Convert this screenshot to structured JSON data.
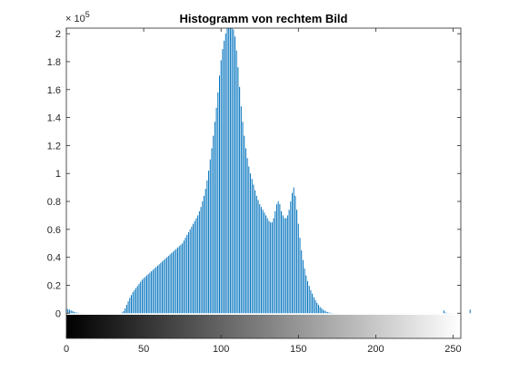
{
  "chart_data": {
    "type": "bar",
    "title": "Histogramm von rechtem Bild",
    "xlabel": "",
    "ylabel": "",
    "xlim": [
      0,
      255
    ],
    "ylim": [
      0,
      204000
    ],
    "ylim_displayed_min": -18000,
    "y_exponent_label": {
      "base": "× 10",
      "power": "5"
    },
    "x_ticks": [
      {
        "value": 0,
        "label": "0"
      },
      {
        "value": 50,
        "label": "50"
      },
      {
        "value": 100,
        "label": "100"
      },
      {
        "value": 150,
        "label": "150"
      },
      {
        "value": 200,
        "label": "200"
      },
      {
        "value": 250,
        "label": "250"
      }
    ],
    "y_ticks": [
      {
        "value": 0,
        "label": "0"
      },
      {
        "value": 20000,
        "label": "0.2"
      },
      {
        "value": 40000,
        "label": "0.4"
      },
      {
        "value": 60000,
        "label": "0.6"
      },
      {
        "value": 80000,
        "label": "0.8"
      },
      {
        "value": 100000,
        "label": "1"
      },
      {
        "value": 120000,
        "label": "1.2"
      },
      {
        "value": 140000,
        "label": "1.4"
      },
      {
        "value": 160000,
        "label": "1.6"
      },
      {
        "value": 180000,
        "label": "1.8"
      },
      {
        "value": 200000,
        "label": "2"
      }
    ],
    "bar_color": "#0072BD",
    "colorbar": "grayscale gradient below x-axis (0 = black, 255 = white)",
    "grid": false,
    "legend": "none",
    "bin_values": [
      3500,
      3000,
      2500,
      2000,
      1500,
      1000,
      600,
      400,
      200,
      100,
      80,
      60,
      50,
      40,
      30,
      30,
      30,
      30,
      30,
      30,
      30,
      30,
      30,
      30,
      30,
      30,
      30,
      30,
      30,
      30,
      30,
      30,
      30,
      30,
      30,
      30,
      500,
      1500,
      3500,
      6000,
      8500,
      11000,
      13000,
      15000,
      16500,
      18000,
      19500,
      21000,
      22500,
      24000,
      25000,
      26000,
      27000,
      28000,
      29000,
      30000,
      31000,
      32000,
      33000,
      34000,
      35000,
      36000,
      37000,
      38000,
      39000,
      40000,
      41000,
      42000,
      43000,
      44000,
      45000,
      46000,
      47000,
      48000,
      49000,
      50000,
      52000,
      54000,
      56000,
      58000,
      60000,
      62000,
      64000,
      66000,
      68000,
      70000,
      73000,
      76000,
      80000,
      84000,
      89000,
      95000,
      102000,
      110000,
      118000,
      127000,
      137000,
      147000,
      158000,
      170000,
      181000,
      189000,
      195000,
      200000,
      204000,
      204000,
      204000,
      204000,
      203000,
      198000,
      188000,
      176000,
      162000,
      148000,
      137000,
      127000,
      118000,
      111000,
      105000,
      100000,
      96000,
      92000,
      88000,
      84000,
      81000,
      78000,
      76000,
      74000,
      72000,
      70000,
      68000,
      66000,
      65000,
      65000,
      68000,
      73000,
      78000,
      80000,
      78000,
      73000,
      70000,
      68000,
      68000,
      70000,
      74000,
      80000,
      86000,
      90000,
      84000,
      74000,
      64000,
      54000,
      45000,
      38000,
      32000,
      27000,
      23000,
      19500,
      16500,
      14000,
      11500,
      9500,
      7500,
      6000,
      4500,
      3500,
      2500,
      1800,
      1200,
      800,
      500,
      300,
      150,
      80,
      50,
      40,
      30,
      20,
      20,
      20,
      20,
      20,
      20,
      20,
      20,
      20,
      20,
      20,
      20,
      20,
      20,
      20,
      20,
      20,
      20,
      20,
      20,
      20,
      20,
      20,
      20,
      20,
      20,
      20,
      20,
      20,
      20,
      20,
      20,
      20,
      20,
      20,
      20,
      20,
      20,
      20,
      20,
      20,
      20,
      20,
      20,
      20,
      20,
      20,
      20,
      20,
      20,
      20,
      20,
      20,
      20,
      20,
      20,
      20,
      20,
      20,
      20,
      20,
      20,
      20,
      20,
      20,
      20,
      20,
      2000,
      500,
      200,
      100,
      60,
      40,
      30,
      20,
      20,
      20,
      20,
      20,
      20,
      20,
      20,
      20,
      20,
      2500
    ]
  }
}
